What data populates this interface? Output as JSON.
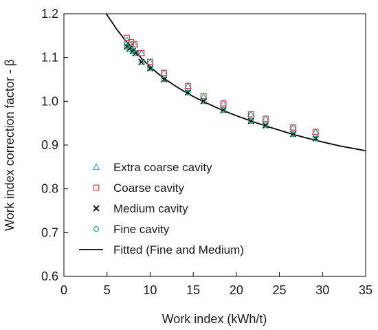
{
  "chart_data": {
    "type": "scatter",
    "xlabel": "Work index (kWh/t)",
    "ylabel": "Work index correction factor - β",
    "xlim": [
      0,
      35
    ],
    "ylim": [
      0.6,
      1.2
    ],
    "xticks": [
      "0",
      "5",
      "10",
      "15",
      "20",
      "25",
      "30",
      "35"
    ],
    "yticks": [
      "0.6",
      "0.7",
      "0.8",
      "0.9",
      "1.0",
      "1.1",
      "1.2"
    ],
    "grid": false,
    "legend_position": "bottom-left",
    "series": [
      {
        "name": "Extra coarse cavity",
        "marker": "triangle",
        "color": "#29b8d8",
        "x": [
          7.3,
          7.8,
          8.2,
          9.0,
          10.0,
          11.6,
          14.4,
          16.2,
          18.5,
          21.7,
          23.4,
          26.6,
          29.2
        ],
        "y": [
          1.14,
          1.13,
          1.13,
          1.11,
          1.09,
          1.065,
          1.035,
          1.01,
          0.995,
          0.97,
          0.96,
          0.94,
          0.93
        ]
      },
      {
        "name": "Coarse cavity",
        "marker": "square",
        "color": "#e03a3a",
        "x": [
          7.3,
          7.8,
          8.2,
          9.0,
          10.0,
          11.6,
          14.4,
          16.2,
          18.5,
          21.7,
          23.4,
          26.6,
          29.2
        ],
        "y": [
          1.145,
          1.135,
          1.13,
          1.11,
          1.09,
          1.065,
          1.035,
          1.012,
          0.995,
          0.97,
          0.96,
          0.94,
          0.93
        ]
      },
      {
        "name": "Medium cavity",
        "marker": "cross",
        "color": "#1a1a1a",
        "x": [
          7.3,
          7.6,
          8.0,
          8.3,
          9.0,
          10.0,
          11.6,
          14.4,
          16.2,
          18.5,
          21.7,
          23.4,
          26.6,
          29.2
        ],
        "y": [
          1.125,
          1.12,
          1.115,
          1.11,
          1.09,
          1.075,
          1.05,
          1.02,
          1.0,
          0.98,
          0.955,
          0.945,
          0.925,
          0.915
        ]
      },
      {
        "name": "Fine cavity",
        "marker": "circle",
        "color": "#1aa88a",
        "x": [
          7.3,
          7.6,
          8.0,
          8.3,
          9.0,
          10.0,
          11.6,
          14.4,
          16.2,
          18.5,
          21.7,
          23.4,
          26.6,
          29.2
        ],
        "y": [
          1.125,
          1.12,
          1.115,
          1.11,
          1.09,
          1.075,
          1.05,
          1.02,
          1.0,
          0.98,
          0.955,
          0.945,
          0.925,
          0.915
        ]
      }
    ],
    "fitted": {
      "name": "Fitted (Fine and Medium)",
      "color": "#000000",
      "x": [
        4.9,
        5.5,
        6,
        7,
        8,
        9,
        10,
        11,
        12,
        13,
        14,
        15,
        16,
        17,
        18,
        19,
        20,
        22,
        24,
        26,
        28,
        30,
        32,
        35
      ],
      "y": [
        1.2,
        1.183,
        1.168,
        1.142,
        1.119,
        1.098,
        1.079,
        1.062,
        1.047,
        1.034,
        1.022,
        1.011,
        1.001,
        0.992,
        0.983,
        0.975,
        0.967,
        0.953,
        0.94,
        0.928,
        0.917,
        0.907,
        0.898,
        0.887
      ]
    }
  }
}
